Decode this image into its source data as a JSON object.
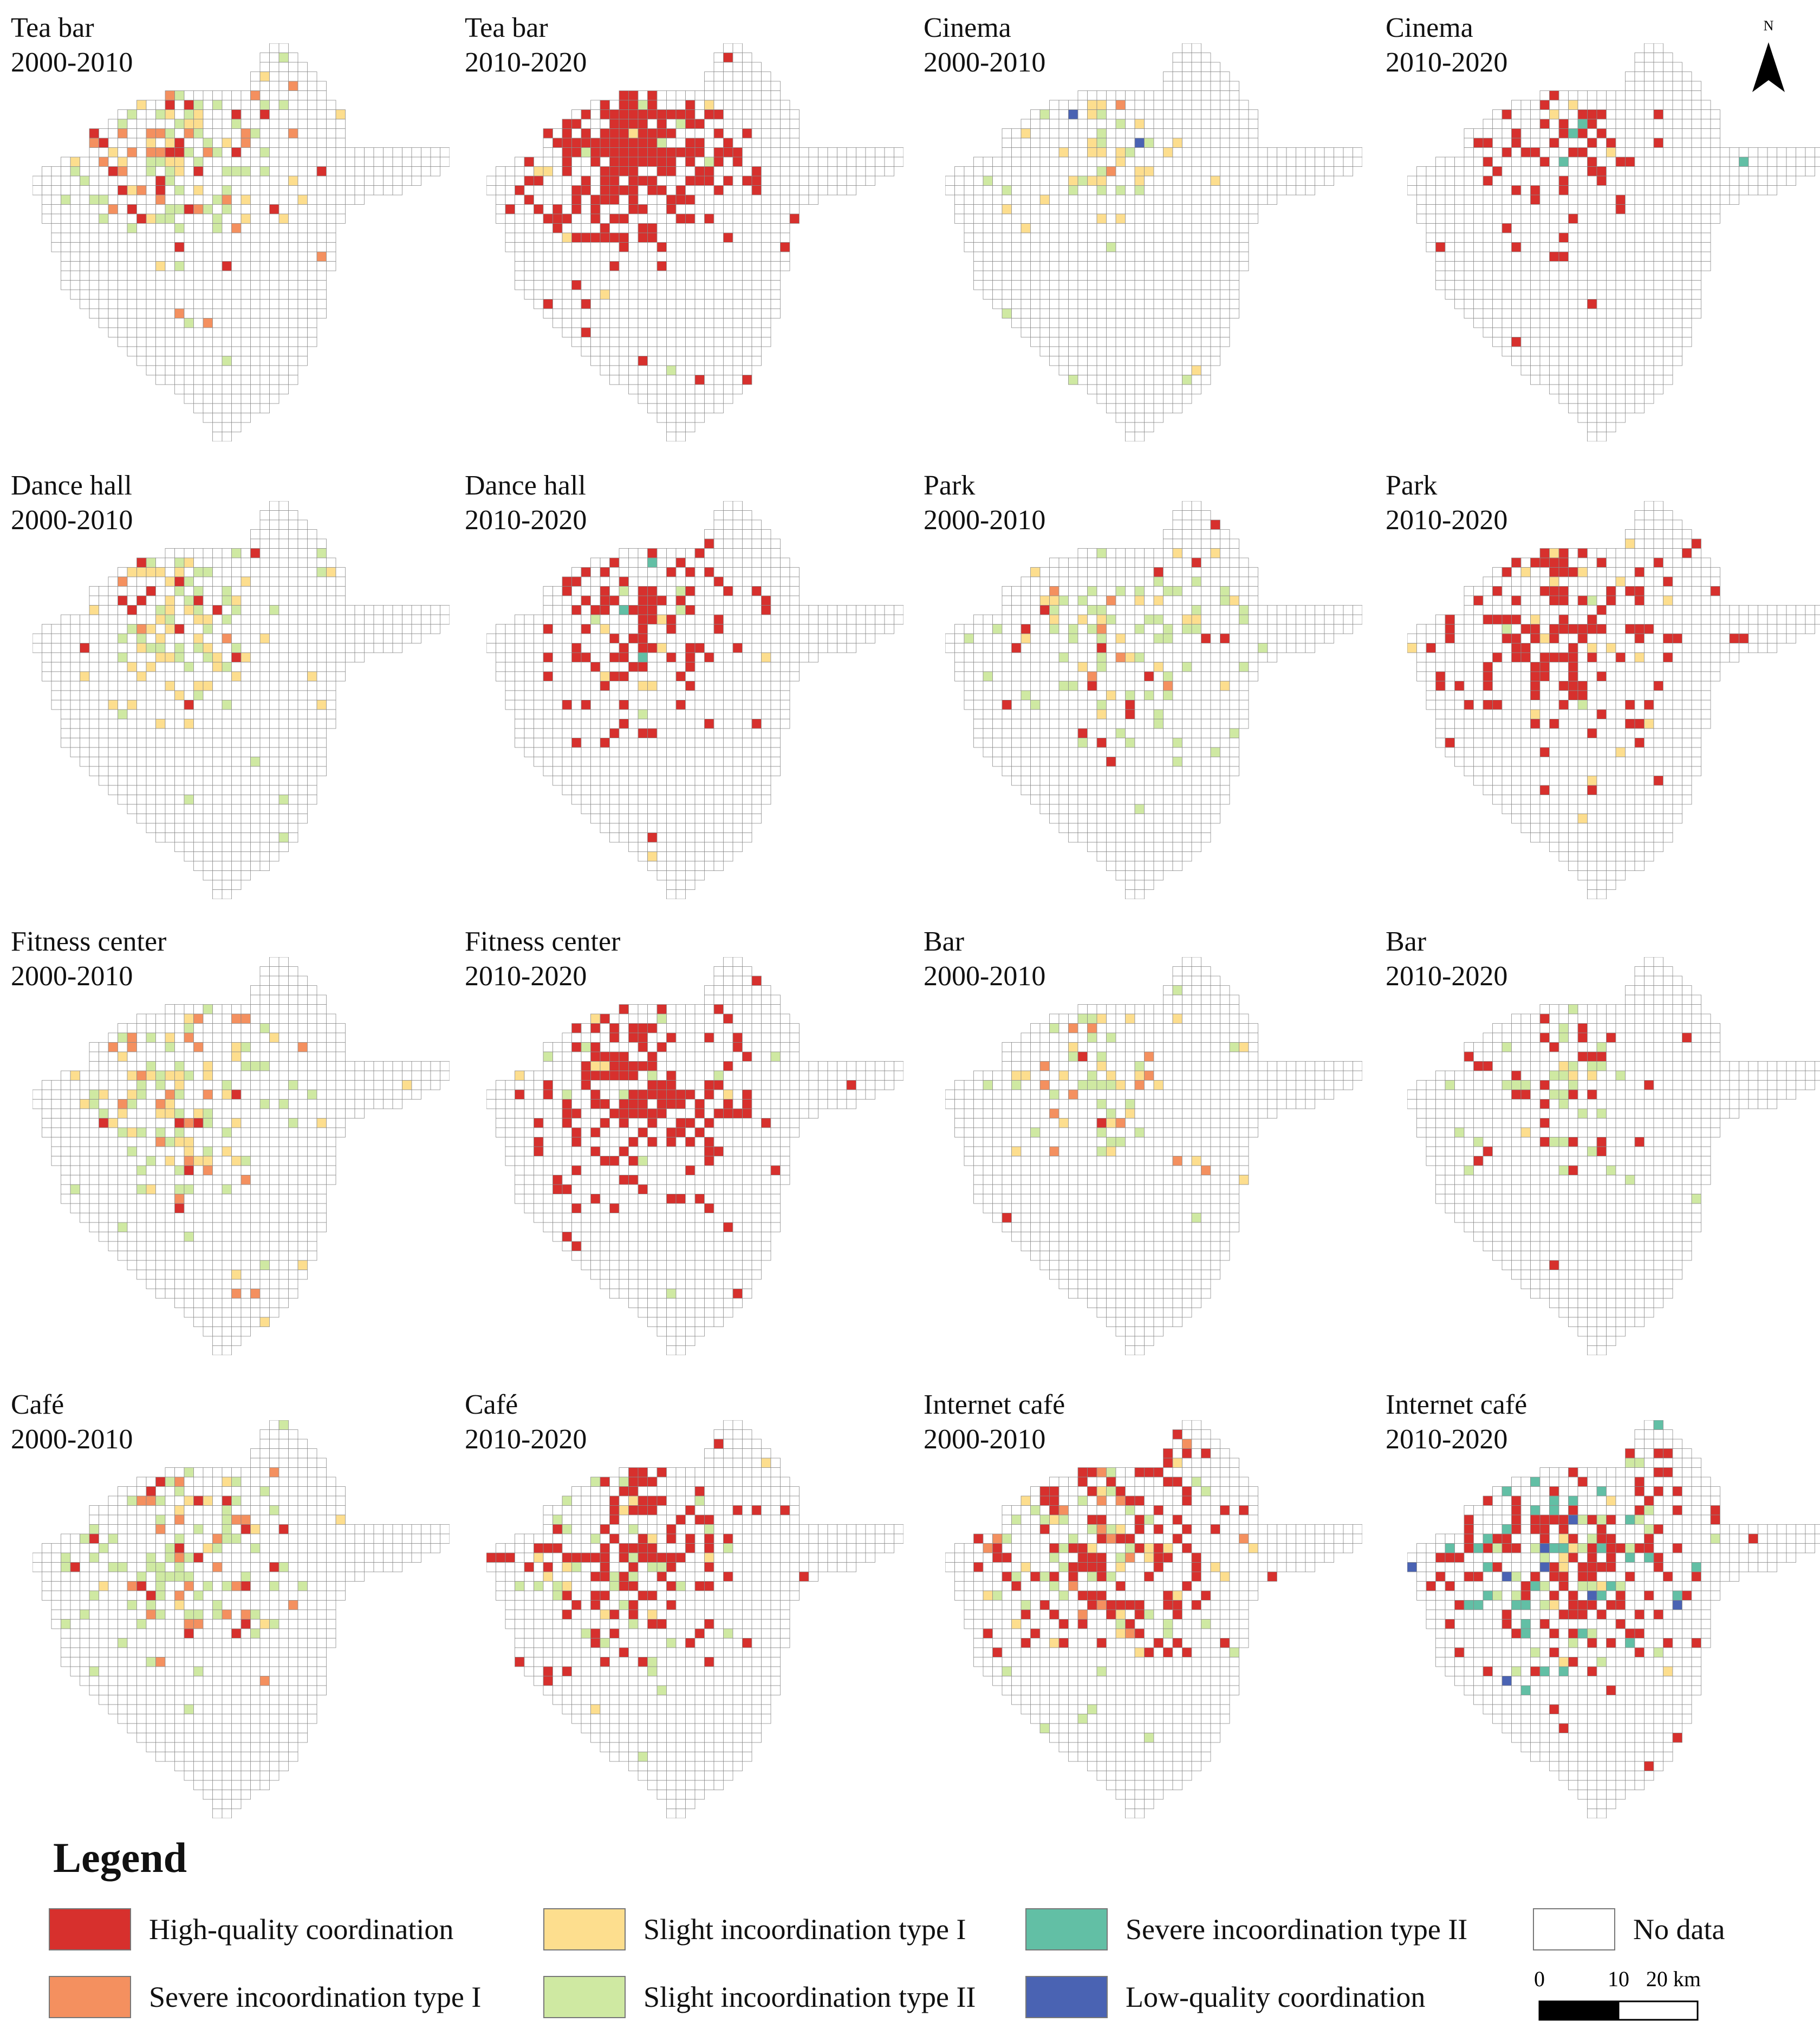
{
  "panels": [
    {
      "category": "Tea bar",
      "period": "2000-2010",
      "pattern": "tea_early"
    },
    {
      "category": "Tea bar",
      "period": "2010-2020",
      "pattern": "tea_late"
    },
    {
      "category": "Cinema",
      "period": "2000-2010",
      "pattern": "cinema_early"
    },
    {
      "category": "Cinema",
      "period": "2010-2020",
      "pattern": "cinema_late"
    },
    {
      "category": "Dance hall",
      "period": "2000-2010",
      "pattern": "dance_early"
    },
    {
      "category": "Dance hall",
      "period": "2010-2020",
      "pattern": "dance_late"
    },
    {
      "category": "Park",
      "period": "2000-2010",
      "pattern": "park_early"
    },
    {
      "category": "Park",
      "period": "2010-2020",
      "pattern": "park_late"
    },
    {
      "category": "Fitness center",
      "period": "2000-2010",
      "pattern": "fitness_early"
    },
    {
      "category": "Fitness center",
      "period": "2010-2020",
      "pattern": "fitness_late"
    },
    {
      "category": "Bar",
      "period": "2000-2010",
      "pattern": "bar_early"
    },
    {
      "category": "Bar",
      "period": "2010-2020",
      "pattern": "bar_late"
    },
    {
      "category": "Café",
      "period": "2000-2010",
      "pattern": "cafe_early"
    },
    {
      "category": "Café",
      "period": "2010-2020",
      "pattern": "cafe_late"
    },
    {
      "category": "Internet café",
      "period": "2000-2010",
      "pattern": "internet_early"
    },
    {
      "category": "Internet café",
      "period": "2010-2020",
      "pattern": "internet_late"
    }
  ],
  "north_label": "N",
  "legend": {
    "title": "Legend",
    "items": [
      {
        "key": "high",
        "label": "High-quality coordination",
        "color": "#d7302d"
      },
      {
        "key": "severe1",
        "label": "Severe incoordination type I",
        "color": "#f4905f"
      },
      {
        "key": "slight1",
        "label": "Slight incoordination type I",
        "color": "#fdde8e"
      },
      {
        "key": "slight2",
        "label": "Slight incoordination type II",
        "color": "#cfe9a2"
      },
      {
        "key": "severe2",
        "label": "Severe incoordination type II",
        "color": "#62bfa5"
      },
      {
        "key": "low",
        "label": "Low-quality coordination",
        "color": "#4a63b3"
      },
      {
        "key": "nodata",
        "label": "No data",
        "color": "#ffffff"
      }
    ]
  },
  "scale": {
    "ticks": [
      "0",
      "10",
      "20 km"
    ]
  }
}
